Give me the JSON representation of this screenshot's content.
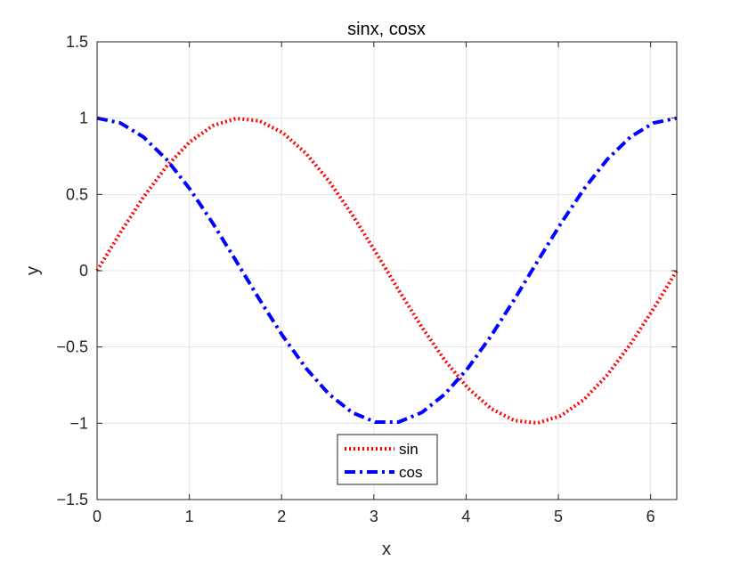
{
  "chart_data": {
    "type": "line",
    "title": "sinx, cosx",
    "xlabel": "x",
    "ylabel": "y",
    "xlim": [
      0,
      6.283185
    ],
    "ylim": [
      -1.5,
      1.5
    ],
    "xticks": [
      "0",
      "1",
      "2",
      "3",
      "4",
      "5",
      "6"
    ],
    "yticks": [
      "-1.5",
      "-1",
      "-0.5",
      "0",
      "0.5",
      "1",
      "1.5"
    ],
    "grid": true,
    "legend_position": "bottom-center",
    "x": [
      0,
      0.2513,
      0.5027,
      0.754,
      1.0053,
      1.2566,
      1.508,
      1.7593,
      2.0106,
      2.2619,
      2.5133,
      2.7646,
      3.0159,
      3.2673,
      3.5186,
      3.7699,
      4.0212,
      4.2726,
      4.5239,
      4.7752,
      5.0265,
      5.2779,
      5.5292,
      5.7805,
      6.0319,
      6.2832
    ],
    "series": [
      {
        "name": "sin",
        "color": "#ff0000",
        "style": "dotted",
        "values": [
          0,
          0.2487,
          0.4818,
          0.6845,
          0.8443,
          0.9511,
          0.998,
          0.9823,
          0.9048,
          0.7705,
          0.5878,
          0.3681,
          0.1253,
          -0.1253,
          -0.3681,
          -0.5878,
          -0.7705,
          -0.9048,
          -0.9823,
          -0.998,
          -0.9511,
          -0.8443,
          -0.6845,
          -0.4818,
          -0.2487,
          0
        ]
      },
      {
        "name": "cos",
        "color": "#0000ff",
        "style": "dashdot",
        "values": [
          1,
          0.9686,
          0.8763,
          0.729,
          0.5358,
          0.309,
          0.0628,
          -0.1874,
          -0.4258,
          -0.6374,
          -0.809,
          -0.9298,
          -0.9921,
          -0.9921,
          -0.9298,
          -0.809,
          -0.6374,
          -0.4258,
          -0.1874,
          0.0628,
          0.309,
          0.5358,
          0.729,
          0.8763,
          0.9686,
          1
        ]
      }
    ]
  }
}
